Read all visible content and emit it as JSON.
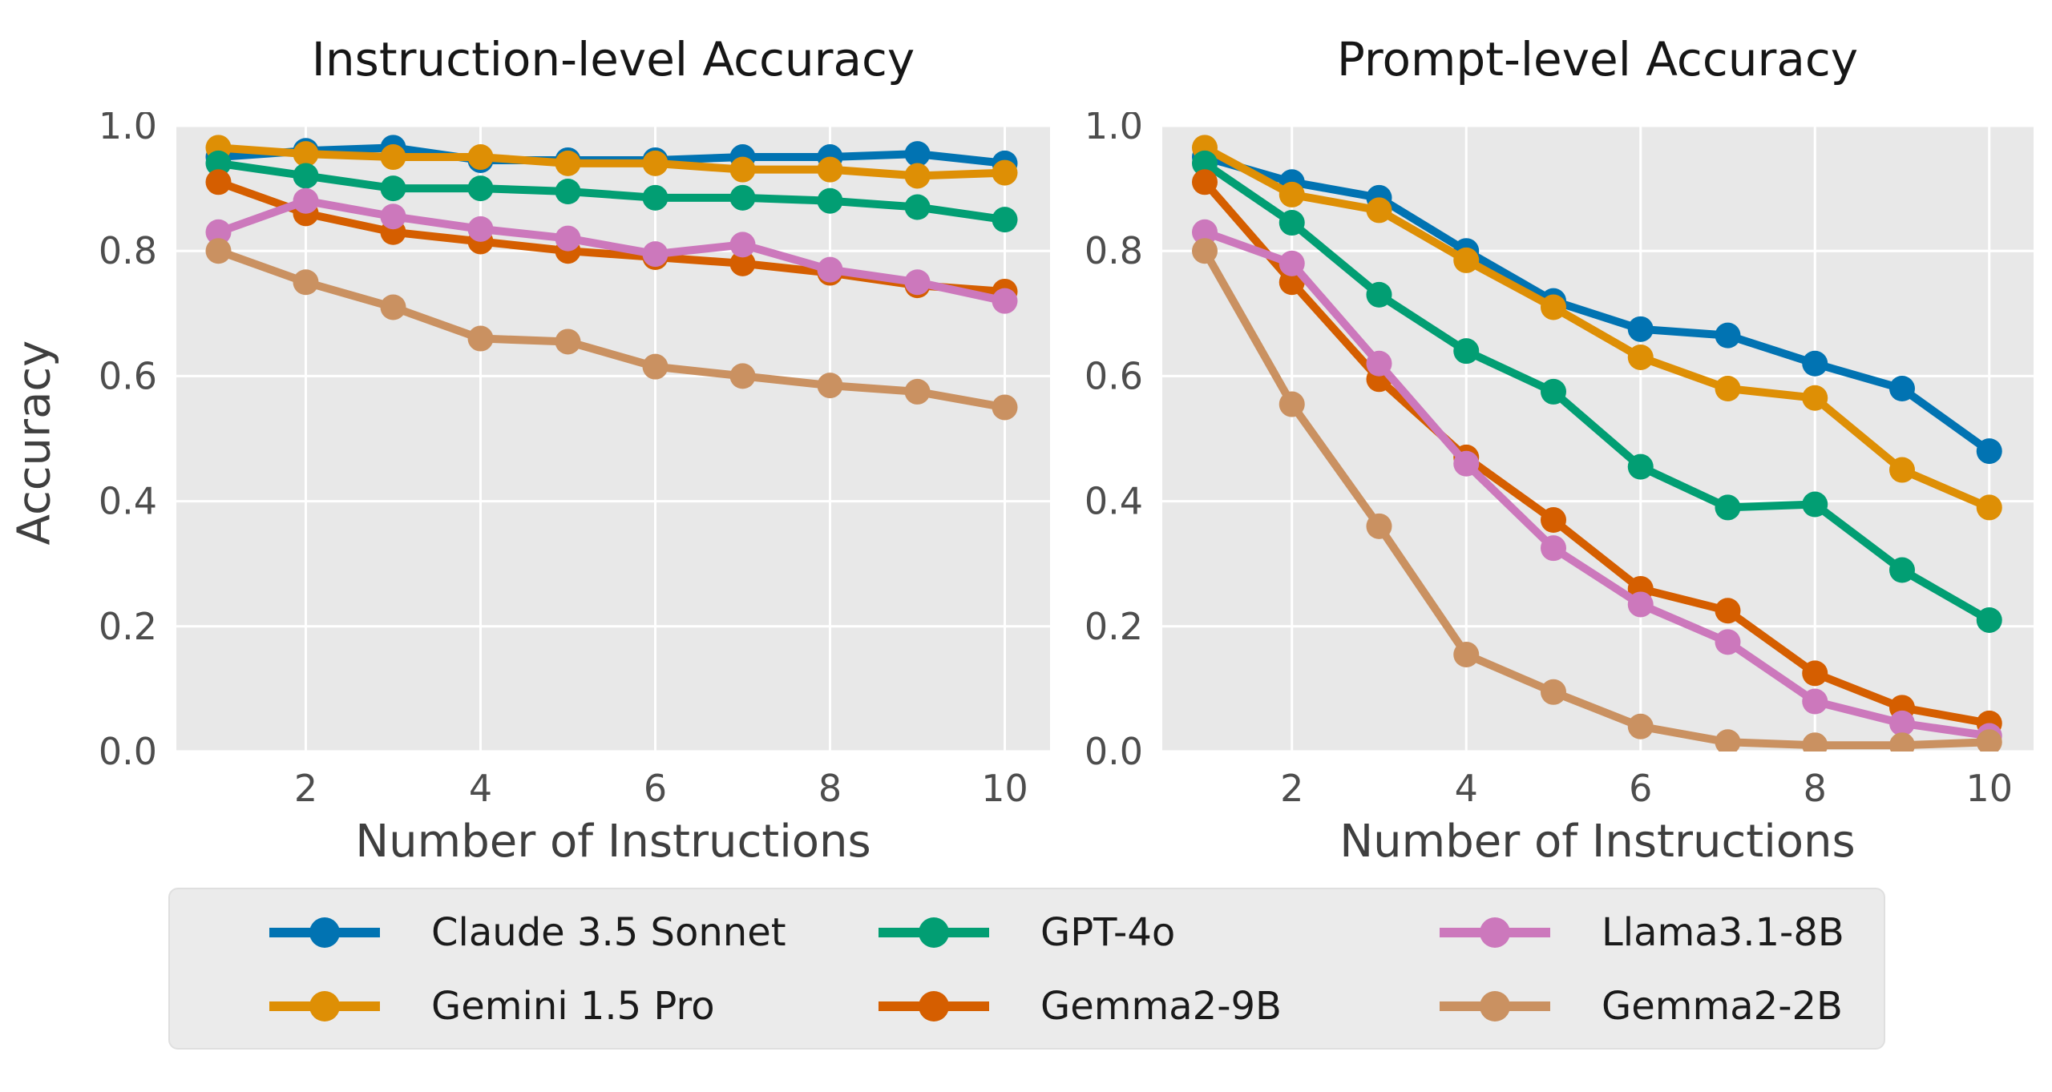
{
  "figure": {
    "background": "#ffffff",
    "plot_background": "#E8E8E8",
    "grid_color": "#ffffff",
    "title_color": "#161616",
    "tick_color": "#4d4d4d",
    "label_color": "#3f3f3f"
  },
  "legend": {
    "items": [
      {
        "label": "Claude 3.5 Sonnet",
        "color": "#0173B2"
      },
      {
        "label": "Gemini 1.5 Pro",
        "color": "#DE8F05"
      },
      {
        "label": "GPT-4o",
        "color": "#029E73"
      },
      {
        "label": "Gemma2-9B",
        "color": "#D55E00"
      },
      {
        "label": "Llama3.1-8B",
        "color": "#CC78BC"
      },
      {
        "label": "Gemma2-2B",
        "color": "#CA9161"
      }
    ]
  },
  "chart_data": [
    {
      "type": "line",
      "title": "Instruction-level Accuracy",
      "xlabel": "Number of Instructions",
      "ylabel": "Accuracy",
      "x": [
        1,
        2,
        3,
        4,
        5,
        6,
        7,
        8,
        9,
        10
      ],
      "xlim": [
        0.55,
        10.45
      ],
      "ylim": [
        0,
        1
      ],
      "grid": true,
      "xtick_values": [
        2,
        4,
        6,
        8,
        10
      ],
      "xtick_labels": [
        "2",
        "4",
        "6",
        "8",
        "10"
      ],
      "ytick_values": [
        1.0,
        0.8,
        0.6,
        0.4,
        0.2,
        0.0
      ],
      "ytick_labels": [
        "1.0",
        "0.8",
        "0.6",
        "0.4",
        "0.2",
        "0.0"
      ],
      "series": [
        {
          "name": "Claude 3.5 Sonnet",
          "color": "#0173B2",
          "values": [
            0.95,
            0.96,
            0.965,
            0.945,
            0.945,
            0.945,
            0.95,
            0.95,
            0.955,
            0.94
          ]
        },
        {
          "name": "Gemini 1.5 Pro",
          "color": "#DE8F05",
          "values": [
            0.965,
            0.955,
            0.95,
            0.95,
            0.94,
            0.94,
            0.93,
            0.93,
            0.92,
            0.925
          ]
        },
        {
          "name": "GPT-4o",
          "color": "#029E73",
          "values": [
            0.94,
            0.92,
            0.9,
            0.9,
            0.895,
            0.885,
            0.885,
            0.88,
            0.87,
            0.85
          ]
        },
        {
          "name": "Gemma2-9B",
          "color": "#D55E00",
          "values": [
            0.91,
            0.86,
            0.83,
            0.815,
            0.8,
            0.79,
            0.78,
            0.765,
            0.745,
            0.735
          ]
        },
        {
          "name": "Llama3.1-8B",
          "color": "#CC78BC",
          "values": [
            0.83,
            0.88,
            0.855,
            0.835,
            0.82,
            0.795,
            0.81,
            0.77,
            0.75,
            0.72
          ]
        },
        {
          "name": "Gemma2-2B",
          "color": "#CA9161",
          "values": [
            0.8,
            0.75,
            0.71,
            0.66,
            0.655,
            0.615,
            0.6,
            0.585,
            0.575,
            0.55
          ]
        }
      ]
    },
    {
      "type": "line",
      "title": "Prompt-level Accuracy",
      "xlabel": "Number of Instructions",
      "ylabel": "",
      "x": [
        1,
        2,
        3,
        4,
        5,
        6,
        7,
        8,
        9,
        10
      ],
      "xlim": [
        0.55,
        10.45
      ],
      "ylim": [
        0,
        1
      ],
      "grid": true,
      "xtick_values": [
        2,
        4,
        6,
        8,
        10
      ],
      "xtick_labels": [
        "2",
        "4",
        "6",
        "8",
        "10"
      ],
      "ytick_values": [
        1.0,
        0.8,
        0.6,
        0.4,
        0.2,
        0.0
      ],
      "ytick_labels": [
        "1.0",
        "0.8",
        "0.6",
        "0.4",
        "0.2",
        "0.0"
      ],
      "series": [
        {
          "name": "Claude 3.5 Sonnet",
          "color": "#0173B2",
          "values": [
            0.95,
            0.91,
            0.885,
            0.8,
            0.72,
            0.675,
            0.665,
            0.62,
            0.58,
            0.48
          ]
        },
        {
          "name": "Gemini 1.5 Pro",
          "color": "#DE8F05",
          "values": [
            0.965,
            0.89,
            0.865,
            0.785,
            0.71,
            0.63,
            0.58,
            0.565,
            0.45,
            0.39
          ]
        },
        {
          "name": "GPT-4o",
          "color": "#029E73",
          "values": [
            0.94,
            0.845,
            0.73,
            0.64,
            0.575,
            0.455,
            0.39,
            0.395,
            0.29,
            0.21
          ]
        },
        {
          "name": "Gemma2-9B",
          "color": "#D55E00",
          "values": [
            0.91,
            0.75,
            0.595,
            0.47,
            0.37,
            0.26,
            0.225,
            0.125,
            0.07,
            0.045
          ]
        },
        {
          "name": "Llama3.1-8B",
          "color": "#CC78BC",
          "values": [
            0.83,
            0.78,
            0.62,
            0.46,
            0.325,
            0.235,
            0.175,
            0.08,
            0.045,
            0.025
          ]
        },
        {
          "name": "Gemma2-2B",
          "color": "#CA9161",
          "values": [
            0.8,
            0.555,
            0.36,
            0.155,
            0.095,
            0.04,
            0.015,
            0.01,
            0.01,
            0.015
          ]
        }
      ]
    }
  ]
}
